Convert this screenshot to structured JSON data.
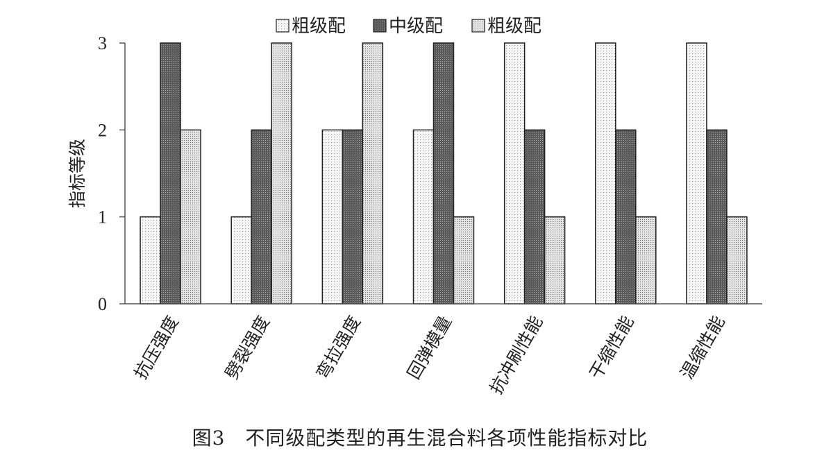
{
  "caption": "图3　不同级配类型的再生混合料各项性能指标对比",
  "chart_data": {
    "type": "bar",
    "title": "",
    "xlabel": "",
    "ylabel": "指标等级",
    "ylim": [
      0,
      3
    ],
    "yticks": [
      0,
      1,
      2,
      3
    ],
    "grid": false,
    "legend_position": "top",
    "categories": [
      "抗压强度",
      "劈裂强度",
      "弯拉强度",
      "回弹模量",
      "抗冲刷性能",
      "干缩性能",
      "温缩性能"
    ],
    "series": [
      {
        "name": "粗级配",
        "values": [
          1,
          1,
          2,
          2,
          3,
          3,
          3
        ],
        "color": "#f4f4f4",
        "pattern": "fine-dots"
      },
      {
        "name": "中级配",
        "values": [
          3,
          2,
          2,
          3,
          2,
          2,
          2
        ],
        "color": "#7a7a7a",
        "pattern": "dense-dots"
      },
      {
        "name": "粗级配",
        "values": [
          2,
          3,
          3,
          1,
          1,
          1,
          1
        ],
        "color": "#d4d4d4",
        "pattern": "medium-dots"
      }
    ]
  }
}
